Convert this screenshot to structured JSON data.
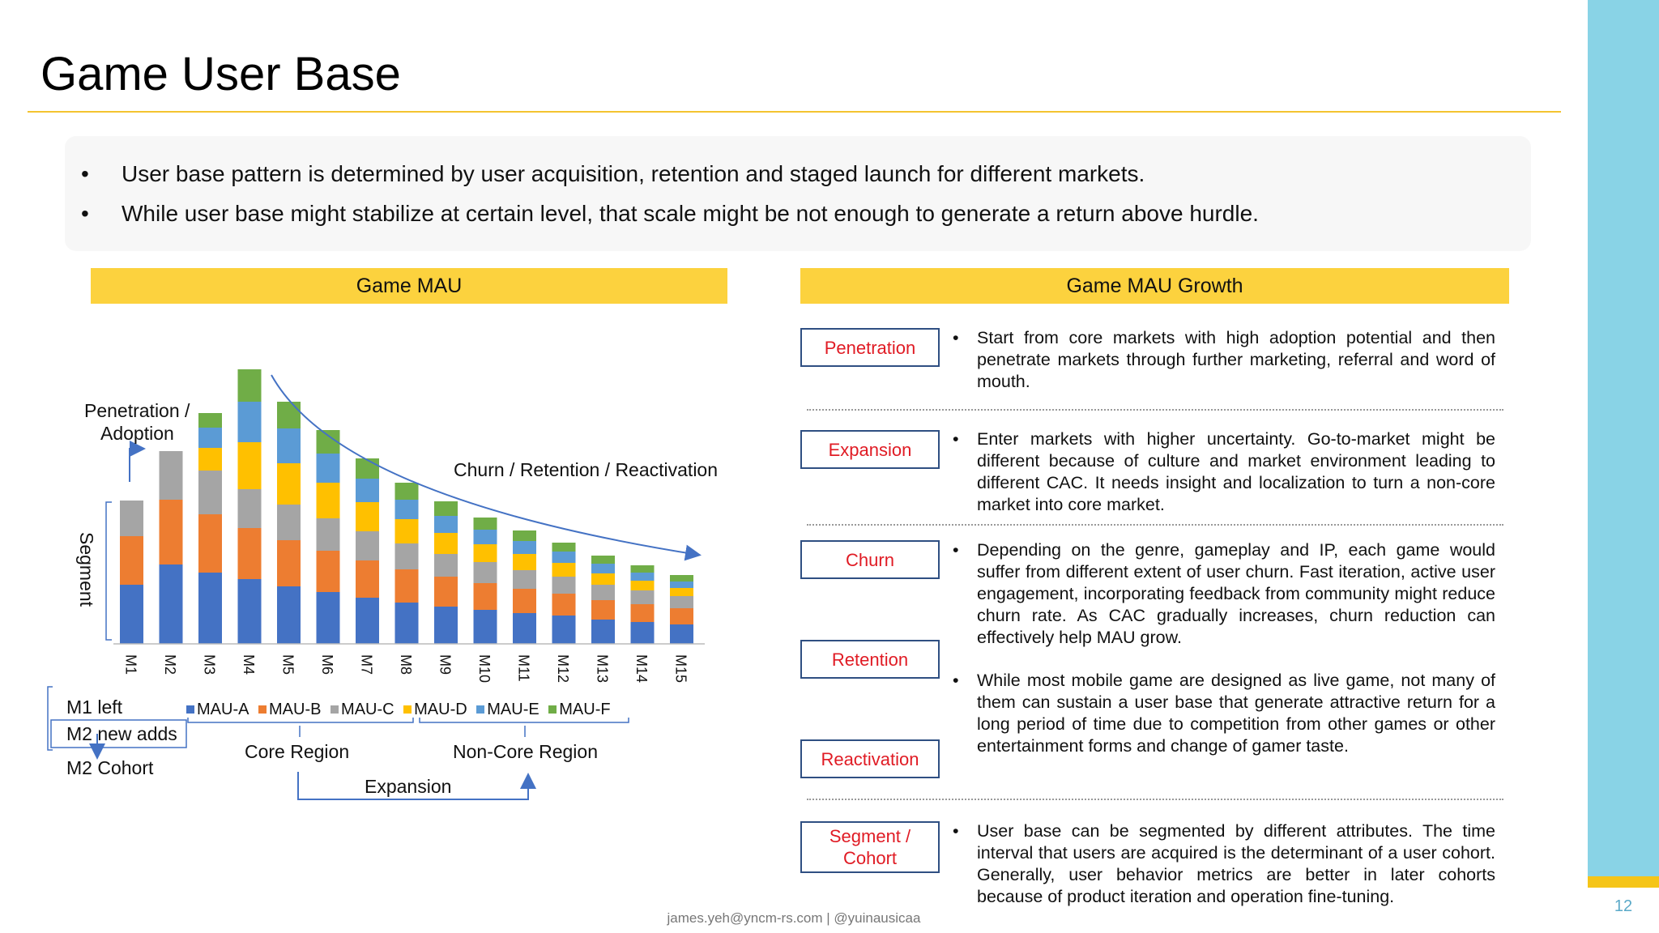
{
  "page": {
    "title": "Game User Base",
    "page_number": "12",
    "footer": "james.yeh@yncm-rs.com | @yuinausicaa",
    "accent_color": "#fcd23e",
    "sidebar_color": "#89d3e6"
  },
  "intro": {
    "bullets": [
      "User base pattern is determined by user acquisition, retention and staged launch for different markets.",
      "While user base might stabilize at certain level, that scale might be not enough to generate a return above hurdle."
    ]
  },
  "left_panel": {
    "header": "Game MAU",
    "annotations": {
      "penetration": "Penetration /",
      "adoption": "Adoption",
      "churn": "Churn / Retention / Reactivation",
      "segment": "Segment",
      "m1_left": "M1 left",
      "m2_new": "M2 new adds",
      "m2_cohort": "M2 Cohort",
      "core": "Core Region",
      "noncore": "Non-Core Region",
      "expansion": "Expansion"
    }
  },
  "chart_data": {
    "type": "bar",
    "stacked": true,
    "categories": [
      "M1",
      "M2",
      "M3",
      "M4",
      "M5",
      "M6",
      "M7",
      "M8",
      "M9",
      "M10",
      "M11",
      "M12",
      "M13",
      "M14",
      "M15"
    ],
    "series": [
      {
        "name": "MAU-A",
        "color": "#4472c4",
        "values": [
          73,
          98,
          88,
          80,
          71,
          64,
          57,
          51,
          46,
          42,
          38,
          35,
          30,
          27,
          24
        ]
      },
      {
        "name": "MAU-B",
        "color": "#ed7d31",
        "values": [
          60,
          80,
          72,
          63,
          57,
          51,
          46,
          41,
          37,
          33,
          30,
          27,
          24,
          22,
          20
        ]
      },
      {
        "name": "MAU-C",
        "color": "#a5a5a5",
        "values": [
          44,
          60,
          54,
          48,
          44,
          40,
          36,
          32,
          28,
          26,
          23,
          21,
          19,
          17,
          15
        ]
      },
      {
        "name": "MAU-D",
        "color": "#ffc000",
        "values": [
          0,
          0,
          28,
          58,
          51,
          44,
          36,
          30,
          26,
          22,
          20,
          17,
          14,
          12,
          10
        ]
      },
      {
        "name": "MAU-E",
        "color": "#5b9bd5",
        "values": [
          0,
          0,
          25,
          50,
          43,
          36,
          29,
          24,
          21,
          18,
          16,
          14,
          12,
          10,
          8
        ]
      },
      {
        "name": "MAU-F",
        "color": "#70ad47",
        "values": [
          0,
          0,
          18,
          40,
          33,
          29,
          25,
          21,
          18,
          15,
          13,
          11,
          10,
          9,
          8
        ]
      }
    ],
    "title": "",
    "xlabel": "",
    "ylabel": "Segment",
    "ylim": [
      0,
      340
    ]
  },
  "right_panel": {
    "header": "Game MAU Growth",
    "categories": [
      {
        "label": "Penetration"
      },
      {
        "label": "Expansion"
      },
      {
        "label": "Churn"
      },
      {
        "label": "Retention"
      },
      {
        "label": "Reactivation"
      },
      {
        "label": "Segment / Cohort"
      }
    ],
    "descriptions": [
      "Start from core markets with high adoption potential and then penetrate markets through further marketing, referral and word of mouth.",
      "Enter markets with higher uncertainty. Go-to-market might be different because of culture and market environment leading to different CAC. It needs insight and localization to turn a non-core market into core market.",
      "Depending on the genre, gameplay and IP, each game would suffer from different extent of user churn. Fast iteration, active user engagement, incorporating feedback from community might reduce churn rate. As CAC gradually increases, churn reduction can effectively help MAU grow.",
      "While most mobile game are designed as live game, not many of them can sustain a user base that generate attractive return for a long period of  time due to competition from other games or other entertainment forms and change of gamer taste.",
      "User base can be segmented by different attributes. The time interval that users are acquired is the determinant of a user cohort. Generally, user behavior metrics are better in later cohorts because of product iteration and operation fine-tuning."
    ]
  }
}
